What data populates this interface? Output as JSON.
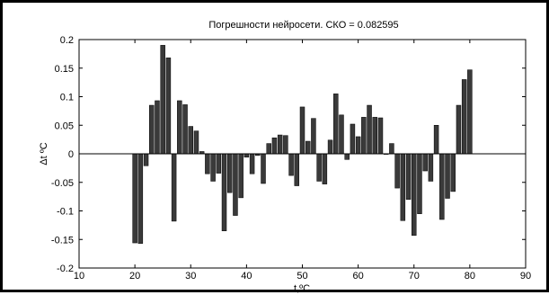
{
  "chart_data": {
    "type": "bar",
    "title": "Погрешности нейросети. СКО = 0.082595",
    "xlabel": "t,ºC",
    "ylabel": "Δt ºC",
    "xlim": [
      10,
      90
    ],
    "ylim": [
      -0.2,
      0.2
    ],
    "xticks": [
      10,
      20,
      30,
      40,
      50,
      60,
      70,
      80,
      90
    ],
    "yticks": [
      -0.2,
      -0.15,
      -0.1,
      -0.05,
      0,
      0.05,
      0.1,
      0.15,
      0.2
    ],
    "xtick_labels": [
      "10",
      "20",
      "30",
      "40",
      "50",
      "60",
      "70",
      "80",
      "90"
    ],
    "ytick_labels": [
      "-0.2",
      "-0.15",
      "-0.1",
      "-0.05",
      "0",
      "0.05",
      "0.1",
      "0.15",
      "0.2"
    ],
    "bar_width": 0.8,
    "bar_color": "#3a3a3a",
    "grid": false,
    "x": [
      20,
      21,
      22,
      23,
      24,
      25,
      26,
      27,
      28,
      29,
      30,
      31,
      32,
      33,
      34,
      35,
      36,
      37,
      38,
      39,
      40,
      41,
      42,
      43,
      44,
      45,
      46,
      47,
      48,
      49,
      50,
      51,
      52,
      53,
      54,
      55,
      56,
      57,
      58,
      59,
      60,
      61,
      62,
      63,
      64,
      65,
      66,
      67,
      68,
      69,
      70,
      71,
      72,
      73,
      74,
      75,
      76,
      77,
      78,
      79,
      80
    ],
    "values": [
      -0.156,
      -0.157,
      -0.021,
      0.085,
      0.093,
      0.19,
      0.168,
      -0.118,
      0.093,
      0.086,
      0.048,
      0.04,
      0.004,
      -0.035,
      -0.048,
      -0.034,
      -0.135,
      -0.068,
      -0.108,
      -0.077,
      -0.006,
      -0.035,
      -0.003,
      -0.052,
      0.018,
      0.028,
      0.033,
      0.032,
      -0.038,
      -0.056,
      0.082,
      0.022,
      0.062,
      -0.048,
      -0.053,
      0.024,
      0.105,
      0.068,
      -0.01,
      0.052,
      0.03,
      0.064,
      0.085,
      0.064,
      0.063,
      -0.001,
      0.018,
      -0.06,
      -0.117,
      -0.08,
      -0.143,
      -0.105,
      -0.03,
      -0.048,
      0.05,
      -0.115,
      -0.078,
      -0.066,
      0.085,
      0.13,
      0.147
    ]
  }
}
